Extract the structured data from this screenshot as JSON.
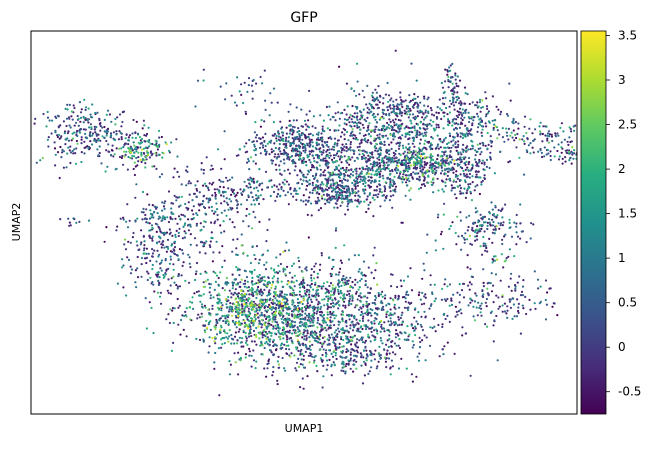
{
  "chart_data": {
    "type": "scatter",
    "title": "GFP",
    "xlabel": "UMAP1",
    "ylabel": "UMAP2",
    "x_ticks_shown": false,
    "y_ticks_shown": false,
    "grid": false,
    "colormap": "viridis",
    "colorbar": {
      "min": -0.75,
      "max": 3.55,
      "ticks": [
        -0.5,
        0,
        0.5,
        1,
        1.5,
        2,
        2.5,
        3,
        3.5
      ],
      "tick_labels": [
        "-0.5",
        "0",
        "0.5",
        "1",
        "1.5",
        "2",
        "2.5",
        "3",
        "3.5"
      ]
    },
    "xlim": [
      0,
      100
    ],
    "ylim": [
      0,
      100
    ],
    "clusters": [
      {
        "cx": 10,
        "cy": 73,
        "sx": 4.5,
        "sy": 4.0,
        "n": 260,
        "mean": 0.7
      },
      {
        "cx": 20,
        "cy": 69,
        "sx": 2.6,
        "sy": 2.4,
        "n": 160,
        "mean": 1.7
      },
      {
        "cx": 34,
        "cy": 56,
        "sx": 4.5,
        "sy": 5.0,
        "n": 210,
        "mean": 0.5
      },
      {
        "cx": 41,
        "cy": 59,
        "sx": 1.8,
        "sy": 1.8,
        "n": 40,
        "mean": 0.8
      },
      {
        "cx": 49,
        "cy": 70,
        "sx": 4.5,
        "sy": 3.0,
        "n": 380,
        "mean": 0.5
      },
      {
        "cx": 62,
        "cy": 70,
        "sx": 5.5,
        "sy": 6.5,
        "n": 520,
        "mean": 0.8
      },
      {
        "cx": 55,
        "cy": 59,
        "sx": 3.5,
        "sy": 3.0,
        "n": 260,
        "mean": 0.6
      },
      {
        "cx": 66,
        "cy": 64,
        "sx": 5.5,
        "sy": 2.5,
        "n": 220,
        "mean": 1.1
      },
      {
        "cx": 72,
        "cy": 65,
        "sx": 2.5,
        "sy": 3.0,
        "n": 150,
        "mean": 1.9
      },
      {
        "cx": 72,
        "cy": 77,
        "sx": 5.0,
        "sy": 3.0,
        "n": 170,
        "mean": 0.7
      },
      {
        "cx": 79,
        "cy": 69,
        "sx": 4.0,
        "sy": 3.0,
        "n": 150,
        "mean": 0.7
      },
      {
        "cx": 63,
        "cy": 58,
        "sx": 1.8,
        "sy": 1.8,
        "n": 50,
        "mean": 0.6
      },
      {
        "cx": 47,
        "cy": 59,
        "sx": 1.8,
        "sy": 1.5,
        "n": 30,
        "mean": 0.5
      },
      {
        "cx": 65,
        "cy": 80,
        "sx": 4.0,
        "sy": 2.5,
        "n": 90,
        "mean": 0.6
      },
      {
        "cx": 82,
        "cy": 78,
        "sx": 4.0,
        "sy": 2.5,
        "n": 80,
        "mean": 0.7
      },
      {
        "cx": 80,
        "cy": 63,
        "sx": 2.0,
        "sy": 1.8,
        "n": 60,
        "mean": 0.6
      },
      {
        "cx": 98,
        "cy": 68,
        "sx": 3.0,
        "sy": 1.5,
        "n": 80,
        "mean": 0.8
      },
      {
        "cx": 122,
        "cy": 86,
        "sx": 1.0,
        "sy": 3.0,
        "n": 60,
        "mean": 0.6
      },
      {
        "cx": 101,
        "cy": 56,
        "sx": 2.5,
        "sy": 1.2,
        "n": 40,
        "mean": 0.6
      },
      {
        "cx": 113,
        "cy": 74,
        "sx": 2.5,
        "sy": 1.2,
        "n": 35,
        "mean": 0.8
      },
      {
        "cx": 127,
        "cy": 76,
        "sx": 2.5,
        "sy": 2.5,
        "n": 40,
        "mean": 1.3
      },
      {
        "cx": 137,
        "cy": 73,
        "sx": 5.0,
        "sy": 1.8,
        "n": 80,
        "mean": 0.7
      },
      {
        "cx": 118,
        "cy": 64,
        "sx": 3.5,
        "sy": 1.5,
        "n": 35,
        "mean": 0.6
      },
      {
        "cx": 124,
        "cy": 59,
        "sx": 2.0,
        "sy": 1.5,
        "n": 40,
        "mean": 0.7
      },
      {
        "cx": 128,
        "cy": 48,
        "sx": 3.5,
        "sy": 3.0,
        "n": 160,
        "mean": 1.0
      },
      {
        "cx": 130,
        "cy": 30,
        "sx": 6.0,
        "sy": 3.5,
        "n": 150,
        "mean": 0.6
      },
      {
        "cx": 24,
        "cy": 49,
        "sx": 3.5,
        "sy": 3.5,
        "n": 160,
        "mean": 0.7
      },
      {
        "cx": 23,
        "cy": 40,
        "sx": 3.5,
        "sy": 4.5,
        "n": 130,
        "mean": 0.6
      },
      {
        "cx": 44,
        "cy": 27,
        "sx": 8.5,
        "sy": 6.5,
        "n": 1100,
        "mean": 1.5
      },
      {
        "cx": 40,
        "cy": 26,
        "sx": 4.0,
        "sy": 3.5,
        "n": 220,
        "mean": 2.1
      },
      {
        "cx": 60,
        "cy": 27,
        "sx": 9.0,
        "sy": 6.0,
        "n": 600,
        "mean": 0.8
      },
      {
        "cx": 55,
        "cy": 16,
        "sx": 8.0,
        "sy": 3.5,
        "n": 300,
        "mean": 0.6
      },
      {
        "cx": 86,
        "cy": 40,
        "sx": 1.5,
        "sy": 1.0,
        "n": 12,
        "mean": 1.6
      },
      {
        "cx": 8,
        "cy": 50,
        "sx": 1.5,
        "sy": 0.8,
        "n": 10,
        "mean": 0.4
      },
      {
        "cx": 32,
        "cy": 44,
        "sx": 1.5,
        "sy": 1.5,
        "n": 20,
        "mean": 0.6
      },
      {
        "cx": 39,
        "cy": 83,
        "sx": 3.5,
        "sy": 3.0,
        "n": 40,
        "mean": 0.7
      }
    ]
  }
}
